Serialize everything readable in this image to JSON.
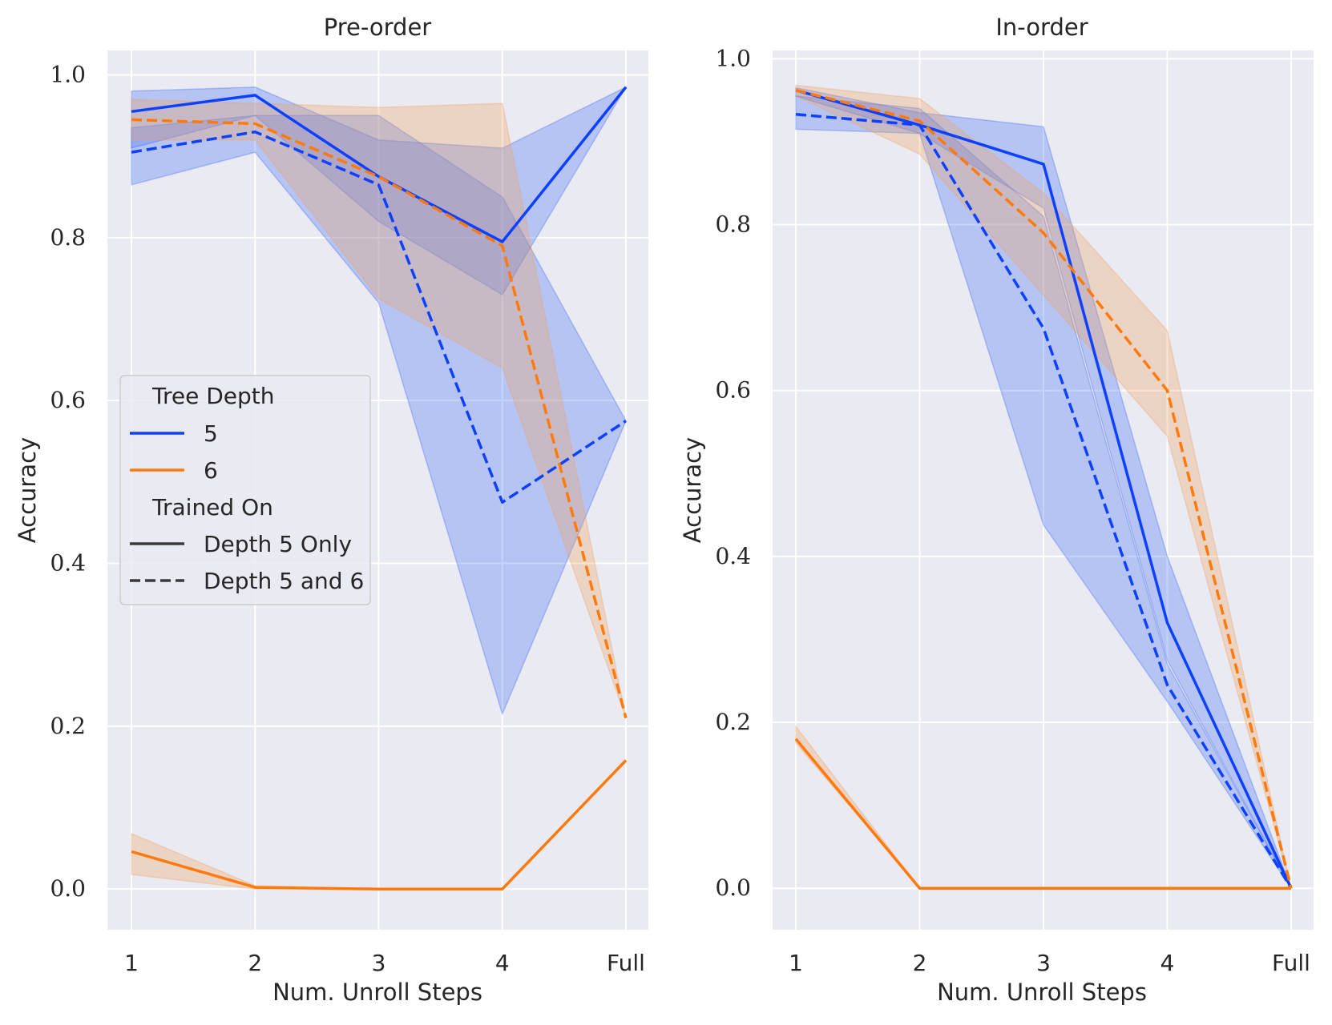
{
  "chart_data": [
    {
      "type": "line",
      "title": "Pre-order",
      "xlabel": "Num. Unroll Steps",
      "ylabel": "Accuracy",
      "categories": [
        "1",
        "2",
        "3",
        "4",
        "Full"
      ],
      "ylim": [
        -0.05,
        1.03
      ],
      "yticks": [
        "0.0",
        "0.2",
        "0.4",
        "0.6",
        "0.8",
        "1.0"
      ],
      "grid": true,
      "legend": {
        "position": "center-left",
        "hue_title": "Tree Depth",
        "hue_entries": [
          "5",
          "6"
        ],
        "style_title": "Trained On",
        "style_entries": [
          "Depth 5 Only",
          "Depth 5 and 6"
        ]
      },
      "series": [
        {
          "name": "5 / Depth 5 Only",
          "depth": "5",
          "trained_on": "Depth 5 Only",
          "values": [
            0.955,
            0.975,
            0.875,
            0.795,
            0.985
          ],
          "lower": [
            0.91,
            0.95,
            0.82,
            0.73,
            0.985
          ],
          "upper": [
            0.98,
            0.985,
            0.92,
            0.91,
            0.985
          ]
        },
        {
          "name": "5 / Depth 5 and 6",
          "depth": "5",
          "trained_on": "Depth 5 and 6",
          "values": [
            0.905,
            0.93,
            0.865,
            0.475,
            0.575
          ],
          "lower": [
            0.865,
            0.905,
            0.72,
            0.215,
            0.575
          ],
          "upper": [
            0.935,
            0.95,
            0.95,
            0.85,
            0.575
          ]
        },
        {
          "name": "6 / Depth 5 Only",
          "depth": "6",
          "trained_on": "Depth 5 Only",
          "values": [
            0.046,
            0.002,
            0.0,
            0.0,
            0.158
          ],
          "lower": [
            0.018,
            0.0,
            0.0,
            0.0,
            0.158
          ],
          "upper": [
            0.068,
            0.004,
            0.0,
            0.0,
            0.158
          ]
        },
        {
          "name": "6 / Depth 5 and 6",
          "depth": "6",
          "trained_on": "Depth 5 and 6",
          "values": [
            0.945,
            0.94,
            0.875,
            0.79,
            0.21
          ],
          "lower": [
            0.92,
            0.92,
            0.725,
            0.64,
            0.21
          ],
          "upper": [
            0.97,
            0.965,
            0.96,
            0.965,
            0.21
          ]
        }
      ]
    },
    {
      "type": "line",
      "title": "In-order",
      "xlabel": "Num. Unroll Steps",
      "ylabel": "Accuracy",
      "categories": [
        "1",
        "2",
        "3",
        "4",
        "Full"
      ],
      "ylim": [
        -0.05,
        1.01
      ],
      "yticks": [
        "0.0",
        "0.2",
        "0.4",
        "0.6",
        "0.8",
        "1.0"
      ],
      "grid": true,
      "series": [
        {
          "name": "5 / Depth 5 Only",
          "depth": "5",
          "trained_on": "Depth 5 Only",
          "values": [
            0.962,
            0.92,
            0.873,
            0.32,
            0.0
          ],
          "lower": [
            0.955,
            0.91,
            0.82,
            0.275,
            0.0
          ],
          "upper": [
            0.965,
            0.935,
            0.918,
            0.4,
            0.0
          ]
        },
        {
          "name": "5 / Depth 5 and 6",
          "depth": "5",
          "trained_on": "Depth 5 and 6",
          "values": [
            0.933,
            0.92,
            0.675,
            0.245,
            0.0
          ],
          "lower": [
            0.915,
            0.91,
            0.438,
            0.225,
            0.0
          ],
          "upper": [
            0.955,
            0.94,
            0.81,
            0.27,
            0.0
          ]
        },
        {
          "name": "6 / Depth 5 Only",
          "depth": "6",
          "trained_on": "Depth 5 Only",
          "values": [
            0.18,
            0.0,
            0.0,
            0.0,
            0.0
          ],
          "lower": [
            0.175,
            0.0,
            0.0,
            0.0,
            0.0
          ],
          "upper": [
            0.195,
            0.0,
            0.0,
            0.0,
            0.0
          ]
        },
        {
          "name": "6 / Depth 5 and 6",
          "depth": "6",
          "trained_on": "Depth 5 and 6",
          "values": [
            0.962,
            0.925,
            0.79,
            0.6,
            0.0
          ],
          "lower": [
            0.955,
            0.885,
            0.715,
            0.545,
            0.0
          ],
          "upper": [
            0.968,
            0.952,
            0.838,
            0.672,
            0.0
          ]
        }
      ]
    }
  ],
  "colors": {
    "depth_5": "#0d40ff",
    "depth_6": "#ff7a0a",
    "band_5": "#3f6df6",
    "band_6": "#f2a15e",
    "axes_bg": "#eaeaf2",
    "grid": "#ffffff",
    "text": "#262626",
    "legend_dark": "#3a3a3a"
  }
}
